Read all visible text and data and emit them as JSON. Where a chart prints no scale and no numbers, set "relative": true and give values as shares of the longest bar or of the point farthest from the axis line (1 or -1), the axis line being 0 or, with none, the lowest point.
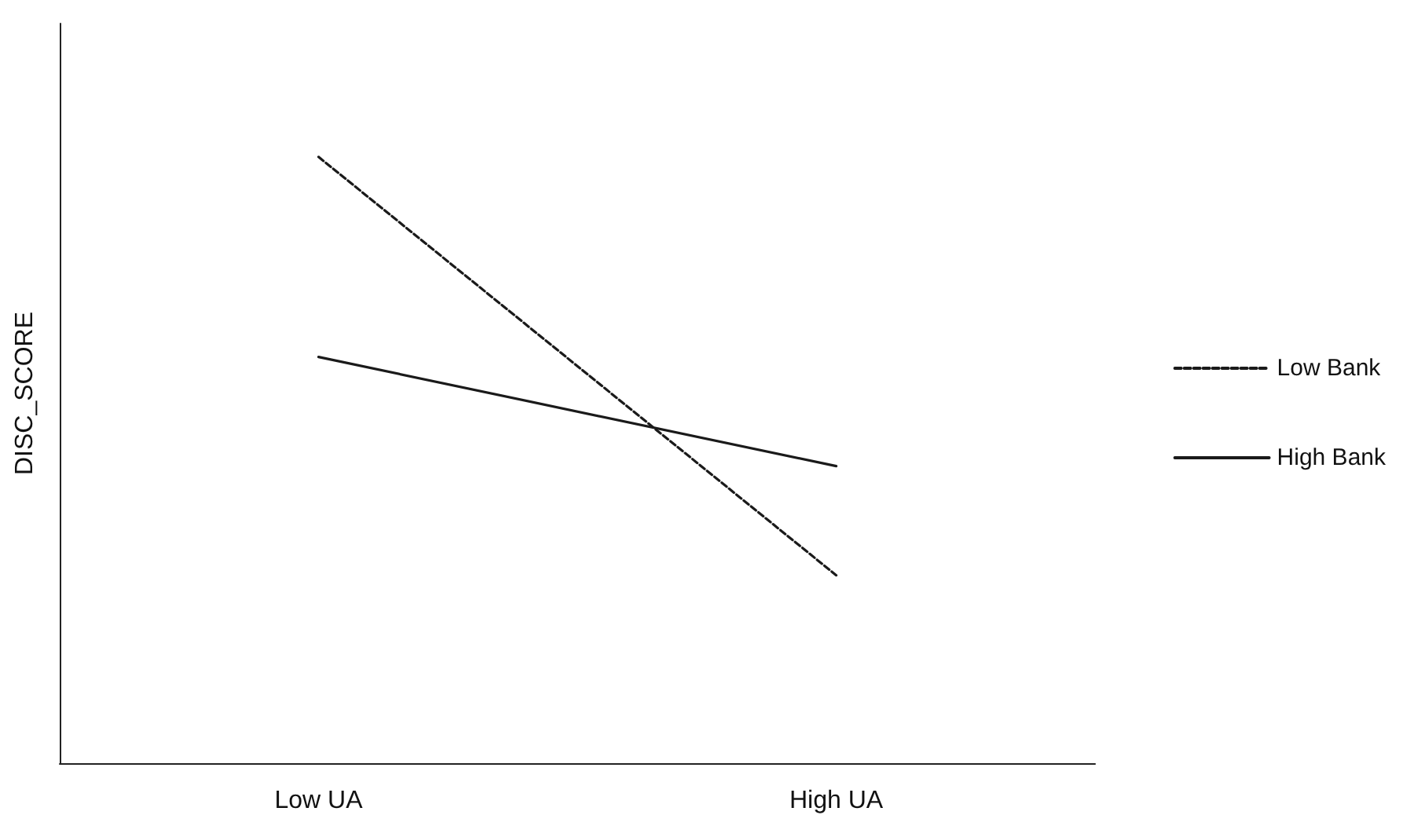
{
  "chart_data": {
    "type": "line",
    "ylabel": "DISC_SCORE",
    "categories": [
      "Low UA",
      "High UA"
    ],
    "relative": true,
    "legend": "right",
    "marker": "none",
    "series": [
      {
        "name": "Low Bank",
        "color": "#1a1a1a",
        "line_style": "dashed",
        "values": [
          1,
          0.31
        ]
      },
      {
        "name": "High Bank",
        "color": "#1a1a1a",
        "line_style": "solid",
        "values": [
          0.67,
          0.49
        ]
      }
    ]
  }
}
